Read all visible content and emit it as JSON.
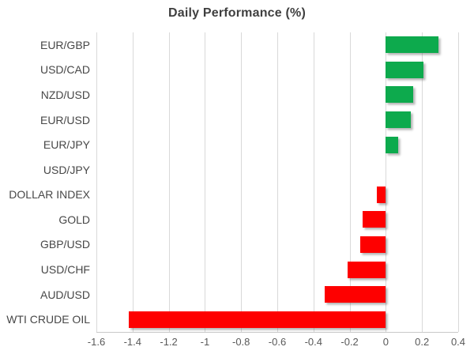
{
  "title": "Daily Performance (%)",
  "colors": {
    "positive_bar": "#0daa4d",
    "negative_bar": "#fe0000",
    "gridline": "#d9d9d9",
    "axis_line": "#c9c9c9",
    "title_text": "#3f3f3f",
    "category_text": "#474747",
    "tick_text": "#595959"
  },
  "chart_data": {
    "type": "bar",
    "orientation": "horizontal",
    "title": "Daily Performance (%)",
    "categories": [
      "EUR/GBP",
      "USD/CAD",
      "NZD/USD",
      "EUR/USD",
      "EUR/JPY",
      "USD/JPY",
      "DOLLAR INDEX",
      "GOLD",
      "GBP/USD",
      "USD/CHF",
      "AUD/USD",
      "WTI CRUDE OIL"
    ],
    "values": [
      0.29,
      0.21,
      0.15,
      0.14,
      0.07,
      0.0,
      -0.05,
      -0.13,
      -0.14,
      -0.21,
      -0.34,
      -1.42
    ],
    "xlabel": "",
    "ylabel": "",
    "xlim": [
      -1.6,
      0.4
    ],
    "x_ticks": [
      -1.6,
      -1.4,
      -1.2,
      -1,
      -0.8,
      -0.6,
      -0.4,
      -0.2,
      0,
      0.2,
      0.4
    ],
    "x_tick_labels": [
      "-1.6",
      "-1.4",
      "-1.2",
      "-1",
      "-0.8",
      "-0.6",
      "-0.4",
      "-0.2",
      "0",
      "0.2",
      "0.4"
    ],
    "grid": true,
    "legend": false
  }
}
